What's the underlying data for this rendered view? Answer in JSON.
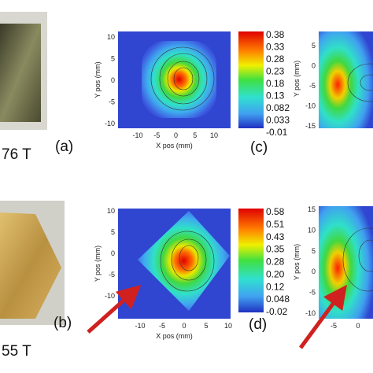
{
  "panels": [
    {
      "label": "(a)",
      "field": "76 T"
    },
    {
      "label": "(b)",
      "field": "55 T"
    }
  ],
  "plots": [
    {
      "label": "(c)",
      "x_axis_label": "X pos (mm)",
      "y_axis_label": "Y pos (mm)",
      "xticks": [
        "-10",
        "-5",
        "0",
        "5",
        "10"
      ],
      "yticks": [
        "10",
        "5",
        "0",
        "-5",
        "-10"
      ],
      "colorbar": [
        "0.38",
        "0.33",
        "0.28",
        "0.23",
        "0.18",
        "0.13",
        "0.082",
        "0.033",
        "-0.01"
      ]
    },
    {
      "label": "(d)",
      "x_axis_label": "X pos (mm)",
      "y_axis_label": "Y pos (mm)",
      "xticks": [
        "-10",
        "-5",
        "0",
        "5",
        "10"
      ],
      "yticks": [
        "10",
        "5",
        "0",
        "-5",
        "-10"
      ],
      "colorbar": [
        "0.58",
        "0.51",
        "0.43",
        "0.35",
        "0.28",
        "0.20",
        "0.12",
        "0.048",
        "-0.02"
      ]
    }
  ],
  "partial_plots": [
    {
      "y_axis_label": "Y pos (mm)",
      "yticks": [
        "5",
        "0",
        "-5",
        "-10",
        "-15"
      ]
    },
    {
      "y_axis_label": "Y pos (mm)",
      "yticks": [
        "15",
        "10",
        "5",
        "0",
        "-5",
        "-10"
      ],
      "xticks": [
        "-5",
        "0"
      ]
    }
  ]
}
